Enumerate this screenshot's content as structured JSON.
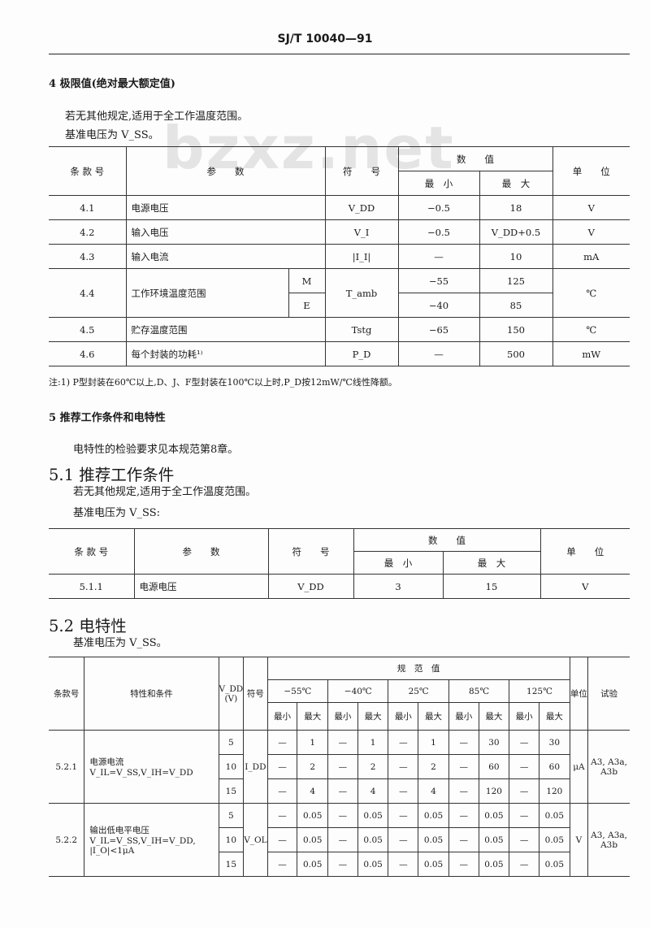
{
  "header": {
    "code": "SJ/T 10040—91"
  },
  "watermark": "bzxz.net",
  "s4": {
    "title": "4  极限值(绝对最大额定值)",
    "line1": "若无其他规定,适用于全工作温度范围。",
    "line2": "基准电压为 V_SS。"
  },
  "t1": {
    "headers": {
      "clause": "条 款 号",
      "param": "参　　数",
      "symbol": "符　　号",
      "value": "数　　值",
      "min": "最　小",
      "max": "最　大",
      "unit": "单　　位"
    },
    "rows": [
      {
        "clause": "4.1",
        "param": "电源电压",
        "symbol": "V_DD",
        "min": "−0.5",
        "max": "18",
        "unit": "V"
      },
      {
        "clause": "4.2",
        "param": "输入电压",
        "symbol": "V_I",
        "min": "−0.5",
        "max": "V_DD+0.5",
        "unit": "V"
      },
      {
        "clause": "4.3",
        "param": "输入电流",
        "symbol": "|I_I|",
        "min": "—",
        "max": "10",
        "unit": "mA"
      },
      {
        "clause": "4.4",
        "param": "工作环境温度范围",
        "symbol": "T_amb",
        "unit": "℃",
        "sub": [
          {
            "grade": "M",
            "min": "−55",
            "max": "125"
          },
          {
            "grade": "E",
            "min": "−40",
            "max": "85"
          }
        ]
      },
      {
        "clause": "4.5",
        "param": "贮存温度范围",
        "symbol": "Tstg",
        "min": "−65",
        "max": "150",
        "unit": "℃"
      },
      {
        "clause": "4.6",
        "param": "每个封装的功耗¹⁾",
        "symbol": "P_D",
        "min": "—",
        "max": "500",
        "unit": "mW"
      }
    ],
    "note": "注:1) P型封装在60℃以上,D、J、F型封装在100℃以上时,P_D按12mW/℃线性降额。"
  },
  "s5": {
    "title": "5  推荐工作条件和电特性",
    "line1": "电特性的检验要求见本规范第8章。",
    "s51": "5.1  推荐工作条件",
    "line2": "若无其他规定,适用于全工作温度范围。",
    "line3": "基准电压为 V_SS:",
    "s52": "5.2  电特性",
    "line4": "基准电压为 V_SS。"
  },
  "t2": {
    "headers": {
      "clause": "条 款 号",
      "param": "参　　数",
      "symbol": "符　　号",
      "value": "数　　值",
      "min": "最　小",
      "max": "最　大",
      "unit": "单　　位"
    },
    "rows": [
      {
        "clause": "5.1.1",
        "param": "电源电压",
        "symbol": "V_DD",
        "min": "3",
        "max": "15",
        "unit": "V"
      }
    ]
  },
  "t3": {
    "headers": {
      "clause": "条款号",
      "char": "特性和条件",
      "vdd": "V_DD (V)",
      "symbol": "符号",
      "spec": "规　范　值",
      "temps": [
        "−55℃",
        "−40℃",
        "25℃",
        "85℃",
        "125℃"
      ],
      "min": "最小",
      "max": "最大",
      "unit": "单位",
      "test": "试验"
    },
    "groups": [
      {
        "clause": "5.2.1",
        "char": [
          "电源电流",
          "V_IL=V_SS,V_IH=V_DD"
        ],
        "symbol": "I_DD",
        "unit": "μA",
        "test": "A3, A3a, A3b",
        "rows": [
          {
            "vdd": "5",
            "vals": [
              "—",
              "1",
              "—",
              "1",
              "—",
              "1",
              "—",
              "30",
              "—",
              "30"
            ]
          },
          {
            "vdd": "10",
            "vals": [
              "—",
              "2",
              "—",
              "2",
              "—",
              "2",
              "—",
              "60",
              "—",
              "60"
            ]
          },
          {
            "vdd": "15",
            "vals": [
              "—",
              "4",
              "—",
              "4",
              "—",
              "4",
              "—",
              "120",
              "—",
              "120"
            ]
          }
        ]
      },
      {
        "clause": "5.2.2",
        "char": [
          "输出低电平电压",
          "V_IL=V_SS,V_IH=V_DD,",
          "|I_O|<1μA"
        ],
        "symbol": "V_OL",
        "unit": "V",
        "test": "A3, A3a, A3b",
        "rows": [
          {
            "vdd": "5",
            "vals": [
              "—",
              "0.05",
              "—",
              "0.05",
              "—",
              "0.05",
              "—",
              "0.05",
              "—",
              "0.05"
            ]
          },
          {
            "vdd": "10",
            "vals": [
              "—",
              "0.05",
              "—",
              "0.05",
              "—",
              "0.05",
              "—",
              "0.05",
              "—",
              "0.05"
            ]
          },
          {
            "vdd": "15",
            "vals": [
              "—",
              "0.05",
              "—",
              "0.05",
              "—",
              "0.05",
              "—",
              "0.05",
              "—",
              "0.05"
            ]
          }
        ]
      }
    ]
  }
}
